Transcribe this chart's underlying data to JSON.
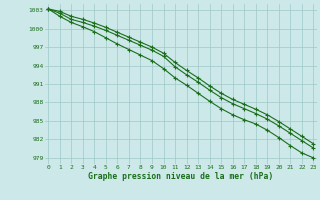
{
  "x": [
    0,
    1,
    2,
    3,
    4,
    5,
    6,
    7,
    8,
    9,
    10,
    11,
    12,
    13,
    14,
    15,
    16,
    17,
    18,
    19,
    20,
    21,
    22,
    23
  ],
  "line1": [
    1003.2,
    1002.5,
    1001.5,
    1001.0,
    1000.4,
    999.7,
    998.9,
    998.1,
    997.3,
    996.5,
    995.5,
    993.8,
    992.5,
    991.3,
    990.0,
    988.8,
    987.8,
    987.0,
    986.2,
    985.3,
    984.2,
    983.0,
    981.8,
    980.6
  ],
  "line2": [
    1003.2,
    1002.0,
    1001.0,
    1000.3,
    999.5,
    998.5,
    997.5,
    996.6,
    995.7,
    994.8,
    993.5,
    992.0,
    990.8,
    989.5,
    988.2,
    987.0,
    986.0,
    985.2,
    984.5,
    983.5,
    982.3,
    981.0,
    979.8,
    979.0
  ],
  "line3": [
    1003.2,
    1002.8,
    1002.0,
    1001.5,
    1000.9,
    1000.2,
    999.4,
    998.6,
    997.8,
    997.0,
    996.0,
    994.5,
    993.2,
    992.0,
    990.7,
    989.5,
    988.5,
    987.7,
    986.9,
    986.0,
    984.9,
    983.7,
    982.5,
    981.3
  ],
  "ylim": [
    978,
    1004
  ],
  "yticks": [
    979,
    982,
    985,
    988,
    991,
    994,
    997,
    1000,
    1003
  ],
  "xticks": [
    0,
    1,
    2,
    3,
    4,
    5,
    6,
    7,
    8,
    9,
    10,
    11,
    12,
    13,
    14,
    15,
    16,
    17,
    18,
    19,
    20,
    21,
    22,
    23
  ],
  "xlabel": "Graphe pression niveau de la mer (hPa)",
  "line_color": "#1a6e1a",
  "bg_color": "#cce8e8",
  "grid_color": "#9dc8c8",
  "marker": "+",
  "marker_size": 3.5,
  "linewidth": 0.8
}
